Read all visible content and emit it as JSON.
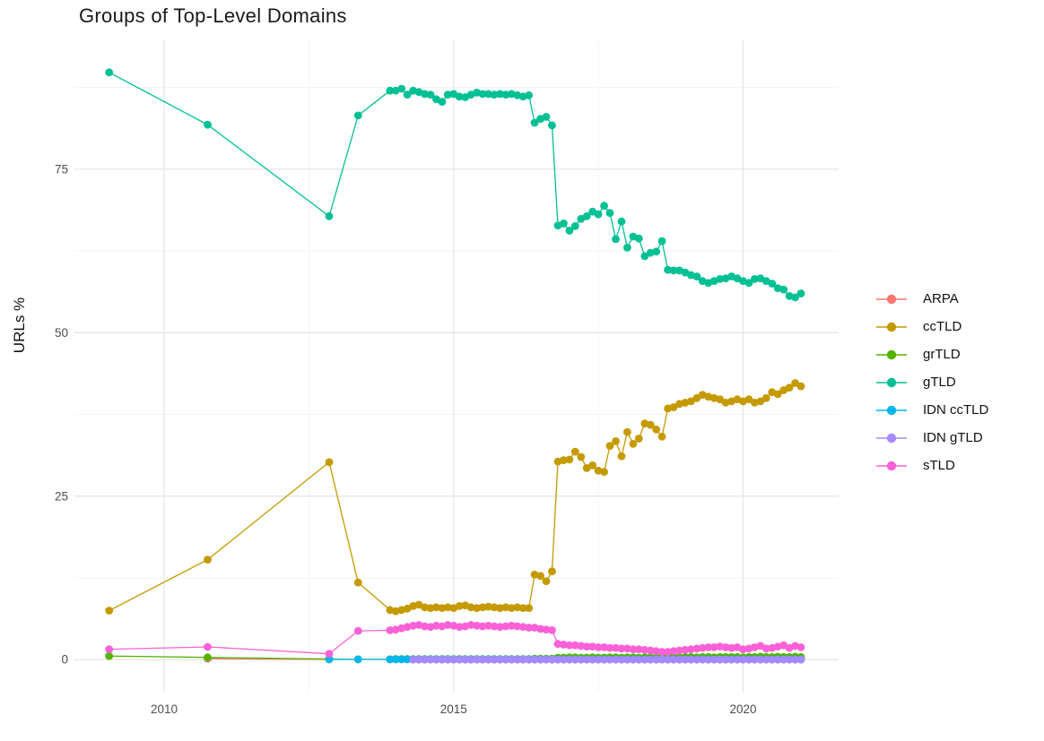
{
  "chart_data": {
    "type": "line",
    "title": "Groups of Top-Level Domains",
    "ylabel": "URLs %",
    "xlabel": "",
    "grid": "on",
    "legend_position": "right",
    "x_tick_labels": [
      "2010",
      "2015",
      "2020"
    ],
    "y_tick_labels": [
      "0",
      "25",
      "50",
      "75"
    ],
    "x_ticks": [
      2010,
      2015,
      2020
    ],
    "y_ticks": [
      0,
      25,
      50,
      75
    ],
    "x_minor_ticks": [
      2012.5,
      2017.5
    ],
    "y_minor_ticks": [
      12.5,
      37.5,
      62.5,
      87.5
    ],
    "xlim": [
      2008.45,
      2021.65
    ],
    "ylim": [
      -4.9,
      94.7
    ],
    "x_dense": [
      2014,
      2014.1,
      2014.2,
      2014.3,
      2014.4,
      2014.5,
      2014.6,
      2014.7,
      2014.8,
      2014.9,
      2015,
      2015.1,
      2015.2,
      2015.3,
      2015.4,
      2015.5,
      2015.6,
      2015.7,
      2015.8,
      2015.9,
      2016,
      2016.1,
      2016.2,
      2016.3,
      2016.4,
      2016.5,
      2016.6,
      2016.7,
      2016.8,
      2016.9,
      2017,
      2017.1,
      2017.2,
      2017.3,
      2017.4,
      2017.5,
      2017.6,
      2017.7,
      2017.8,
      2017.9,
      2018,
      2018.1,
      2018.2,
      2018.3,
      2018.4,
      2018.5,
      2018.6,
      2018.7,
      2018.8,
      2018.9,
      2019,
      2019.1,
      2019.2,
      2019.3,
      2019.4,
      2019.5,
      2019.6,
      2019.7,
      2019.8,
      2019.9,
      2020,
      2020.1,
      2020.2,
      2020.3,
      2020.4,
      2020.5,
      2020.6,
      2020.7,
      2020.8,
      2020.9,
      2021
    ],
    "series": [
      {
        "name": "ARPA",
        "color": "#F8766D",
        "x_early": [
          2010.75,
          2012.85
        ],
        "y_early": [
          0.15,
          0.05
        ],
        "dense_offset": 0,
        "y_dense": []
      },
      {
        "name": "ccTLD",
        "color": "#C49A00",
        "x_early": [
          2009.05,
          2010.75,
          2012.85,
          2013.35,
          2013.9
        ],
        "y_early": [
          7.5,
          15.3,
          30.2,
          11.8,
          7.6
        ],
        "dense_offset": 0,
        "y_dense": [
          7.4,
          7.6,
          7.8,
          8.2,
          8.4,
          8.0,
          7.9,
          8.0,
          7.9,
          8.0,
          7.9,
          8.2,
          8.3,
          8.0,
          7.9,
          8.0,
          8.1,
          8.0,
          7.9,
          8.0,
          7.9,
          8.0,
          7.9,
          7.9,
          13.0,
          12.8,
          12.0,
          13.5,
          30.3,
          30.5,
          30.6,
          31.8,
          31.0,
          29.3,
          29.7,
          28.9,
          28.7,
          32.7,
          33.4,
          31.1,
          34.8,
          33.0,
          33.8,
          36.1,
          35.9,
          35.2,
          34.1,
          38.4,
          38.6,
          39.1,
          39.3,
          39.5,
          40.0,
          40.5,
          40.2,
          40.0,
          39.8,
          39.3,
          39.5,
          39.8,
          39.5,
          39.8,
          39.3,
          39.5,
          40.0,
          40.9,
          40.6,
          41.2,
          41.6,
          42.3,
          41.8
        ]
      },
      {
        "name": "grTLD",
        "color": "#53B400",
        "x_early": [
          2009.05,
          2010.75,
          2012.85,
          2013.35,
          2013.9
        ],
        "y_early": [
          0.55,
          0.35,
          0.1,
          0.05,
          0.05
        ],
        "dense_offset": 0,
        "y_dense": [
          0.1,
          0.1,
          0.1,
          0.1,
          0.1,
          0.1,
          0.1,
          0.1,
          0.1,
          0.1,
          0.1,
          0.1,
          0.1,
          0.1,
          0.1,
          0.1,
          0.1,
          0.1,
          0.1,
          0.1,
          0.1,
          0.1,
          0.1,
          0.1,
          0.15,
          0.15,
          0.15,
          0.15,
          0.3,
          0.3,
          0.35,
          0.35,
          0.3,
          0.3,
          0.35,
          0.3,
          0.3,
          0.35,
          0.35,
          0.3,
          0.35,
          0.35,
          0.3,
          0.35,
          0.35,
          0.3,
          0.35,
          0.35,
          0.4,
          0.35,
          0.4,
          0.4,
          0.35,
          0.4,
          0.4,
          0.35,
          0.4,
          0.4,
          0.4,
          0.4,
          0.35,
          0.4,
          0.4,
          0.45,
          0.4,
          0.4,
          0.45,
          0.4,
          0.4,
          0.45,
          0.4
        ]
      },
      {
        "name": "gTLD",
        "color": "#00C094",
        "x_early": [
          2009.05,
          2010.75,
          2012.85,
          2013.35,
          2013.9
        ],
        "y_early": [
          89.8,
          81.8,
          67.8,
          83.2,
          87.0
        ],
        "dense_offset": 0,
        "y_dense": [
          87.0,
          87.3,
          86.4,
          87.0,
          86.8,
          86.5,
          86.4,
          85.7,
          85.3,
          86.4,
          86.5,
          86.1,
          86.0,
          86.4,
          86.7,
          86.5,
          86.5,
          86.4,
          86.5,
          86.4,
          86.5,
          86.3,
          86.1,
          86.3,
          82.1,
          82.7,
          83.0,
          81.7,
          66.4,
          66.7,
          65.6,
          66.3,
          67.4,
          67.8,
          68.5,
          68.1,
          69.4,
          68.3,
          64.3,
          67.0,
          63.0,
          64.7,
          64.4,
          61.7,
          62.2,
          62.4,
          64.0,
          59.6,
          59.5,
          59.5,
          59.2,
          58.8,
          58.6,
          57.9,
          57.6,
          57.9,
          58.2,
          58.3,
          58.6,
          58.3,
          57.9,
          57.6,
          58.2,
          58.3,
          57.9,
          57.5,
          56.8,
          56.6,
          55.6,
          55.4,
          56.0
        ]
      },
      {
        "name": "IDN ccTLD",
        "color": "#00B6EB",
        "x_early": [
          2012.85,
          2013.35,
          2013.9
        ],
        "y_early": [
          0.05,
          0.05,
          0.05
        ],
        "dense_offset": 0,
        "y_dense": [
          0.05,
          0.05,
          0.05,
          0.05,
          0.05,
          0.05,
          0.05,
          0.05,
          0.05,
          0.05,
          0.05,
          0.05,
          0.05,
          0.05,
          0.05,
          0.05,
          0.05,
          0.05,
          0.05,
          0.05,
          0.05,
          0.05,
          0.05,
          0.05,
          0.05,
          0.05,
          0.05,
          0.05,
          0.05,
          0.05,
          0.05,
          0.05,
          0.05,
          0.05,
          0.05,
          0.05,
          0.05,
          0.05,
          0.05,
          0.05,
          0.05,
          0.05,
          0.05,
          0.05,
          0.05,
          0.05,
          0.05,
          0.05,
          0.05,
          0.05,
          0.05,
          0.05,
          0.05,
          0.05,
          0.05,
          0.05,
          0.05,
          0.05,
          0.05,
          0.05,
          0.05,
          0.05,
          0.05,
          0.05,
          0.05,
          0.05,
          0.05,
          0.05,
          0.05,
          0.05,
          0.05
        ]
      },
      {
        "name": "IDN gTLD",
        "color": "#A58AFF",
        "x_early": [],
        "y_early": [],
        "dense_offset": 3,
        "y_dense": [
          0,
          0,
          0,
          0,
          0,
          0,
          0,
          0,
          0,
          0,
          0,
          0,
          0,
          0,
          0,
          0,
          0,
          0,
          0,
          0,
          0,
          0,
          0,
          0,
          0,
          0,
          0,
          0,
          0,
          0,
          0,
          0,
          0,
          0,
          0,
          0,
          0,
          0,
          0,
          0,
          0,
          0,
          0,
          0,
          0,
          0,
          0,
          0,
          0,
          0,
          0,
          0,
          0,
          0,
          0,
          0,
          0,
          0,
          0,
          0,
          0,
          0,
          0,
          0,
          0,
          0,
          0,
          0
        ]
      },
      {
        "name": "sTLD",
        "color": "#FB61D7",
        "x_early": [
          2009.05,
          2010.75,
          2012.85,
          2013.35,
          2013.9
        ],
        "y_early": [
          1.6,
          1.95,
          0.9,
          4.4,
          4.5
        ],
        "dense_offset": 0,
        "y_dense": [
          4.6,
          4.8,
          5.0,
          5.2,
          5.3,
          5.1,
          5.0,
          5.2,
          5.1,
          5.3,
          5.2,
          5.0,
          5.1,
          5.3,
          5.2,
          5.1,
          5.2,
          5.1,
          5.0,
          5.1,
          5.2,
          5.1,
          5.0,
          4.9,
          4.9,
          4.7,
          4.6,
          4.5,
          2.4,
          2.3,
          2.2,
          2.2,
          2.1,
          2.0,
          2.0,
          1.9,
          1.9,
          1.8,
          1.8,
          1.7,
          1.7,
          1.6,
          1.6,
          1.5,
          1.4,
          1.3,
          1.2,
          1.2,
          1.3,
          1.4,
          1.5,
          1.6,
          1.7,
          1.8,
          1.9,
          1.9,
          2.0,
          1.9,
          1.8,
          1.9,
          1.6,
          1.7,
          1.9,
          2.1,
          1.7,
          1.8,
          2.0,
          2.2,
          1.8,
          2.1,
          1.9
        ]
      }
    ],
    "style": {
      "grid_major_color": "#E5E5E5",
      "grid_minor_color": "#F2F2F2",
      "tick_label_color": "#4D4D4D",
      "point_radius": 4.4,
      "line_width": 1.3
    }
  }
}
